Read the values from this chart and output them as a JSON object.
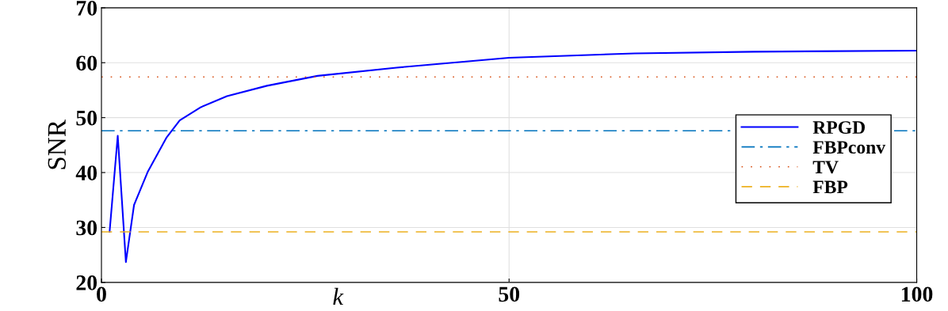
{
  "chart_data": {
    "type": "line",
    "xlabel": "k",
    "ylabel": "SNR",
    "series": [
      {
        "name": "RPGD",
        "color": "#0000ff",
        "line_style": "solid",
        "x": [
          1,
          2,
          3,
          4,
          5.7,
          8,
          9.6,
          12.2,
          15.4,
          20.3,
          26.5,
          36.2,
          50,
          65.4,
          80,
          100
        ],
        "values": [
          29.2,
          46.7,
          23.7,
          34.1,
          40.2,
          46.4,
          49.5,
          51.9,
          53.9,
          55.8,
          57.6,
          59.1,
          60.9,
          61.7,
          62.0,
          62.2
        ]
      }
    ],
    "ref_lines": [
      {
        "axis": "y",
        "value": 47.6,
        "label": "FBPconv",
        "color": "#0072bd",
        "line_style": "dashdot"
      },
      {
        "axis": "y",
        "value": 57.4,
        "label": "TV",
        "color": "#d95319",
        "line_style": "dotted"
      },
      {
        "axis": "y",
        "value": 29.2,
        "label": "FBP",
        "color": "#edb120",
        "line_style": "dashed"
      }
    ],
    "xlim": [
      0,
      100
    ],
    "xticks": [
      0,
      50,
      100
    ],
    "ylim": [
      20,
      70
    ],
    "yticks": [
      20,
      30,
      40,
      50,
      60,
      70
    ],
    "grid": true,
    "legend": "center right"
  }
}
